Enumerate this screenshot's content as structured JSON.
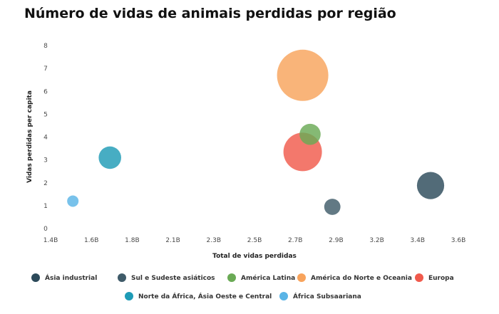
{
  "chart_data": {
    "type": "scatter",
    "title": "Número de vidas de animais perdidas por região",
    "xlabel": "Total de vidas perdidas",
    "ylabel": "Vidas perdidas per capita",
    "x_ticks": [
      "1.4B",
      "1.6B",
      "1.8B",
      "2.1B",
      "2.3B",
      "2.5B",
      "2.7B",
      "2.9B",
      "3.2B",
      "3.4B",
      "3.6B"
    ],
    "y_ticks": [
      "0",
      "1",
      "2",
      "3",
      "4",
      "5",
      "6",
      "7",
      "8"
    ],
    "xlim": [
      1.4,
      3.6
    ],
    "ylim": [
      0,
      8
    ],
    "grid": false,
    "legend_position": "bottom",
    "series": [
      {
        "name": "Ásia industrial",
        "color": "#2c4a5a",
        "points": [
          {
            "x": 3.45,
            "y": 1.88,
            "size": 4.5
          }
        ]
      },
      {
        "name": "Sul e Sudeste asiáticos",
        "color": "#3f5b69",
        "points": [
          {
            "x": 2.92,
            "y": 0.95,
            "size": 1.6
          }
        ]
      },
      {
        "name": "América Latina",
        "color": "#6aaa55",
        "points": [
          {
            "x": 2.8,
            "y": 4.12,
            "size": 2.7
          }
        ]
      },
      {
        "name": "América do Norte e Oceania",
        "color": "#f8a35c",
        "points": [
          {
            "x": 2.76,
            "y": 6.7,
            "size": 16
          }
        ]
      },
      {
        "name": "Europa",
        "color": "#f05a4c",
        "points": [
          {
            "x": 2.76,
            "y": 3.35,
            "size": 9
          }
        ]
      },
      {
        "name": "Norte da África, Ásia Oeste e Central",
        "color": "#1e9bb6",
        "points": [
          {
            "x": 1.72,
            "y": 3.1,
            "size": 3.1
          }
        ]
      },
      {
        "name": "África Subsaariana",
        "color": "#5ab4e6",
        "points": [
          {
            "x": 1.52,
            "y": 1.2,
            "size": 0.8
          }
        ]
      }
    ]
  }
}
